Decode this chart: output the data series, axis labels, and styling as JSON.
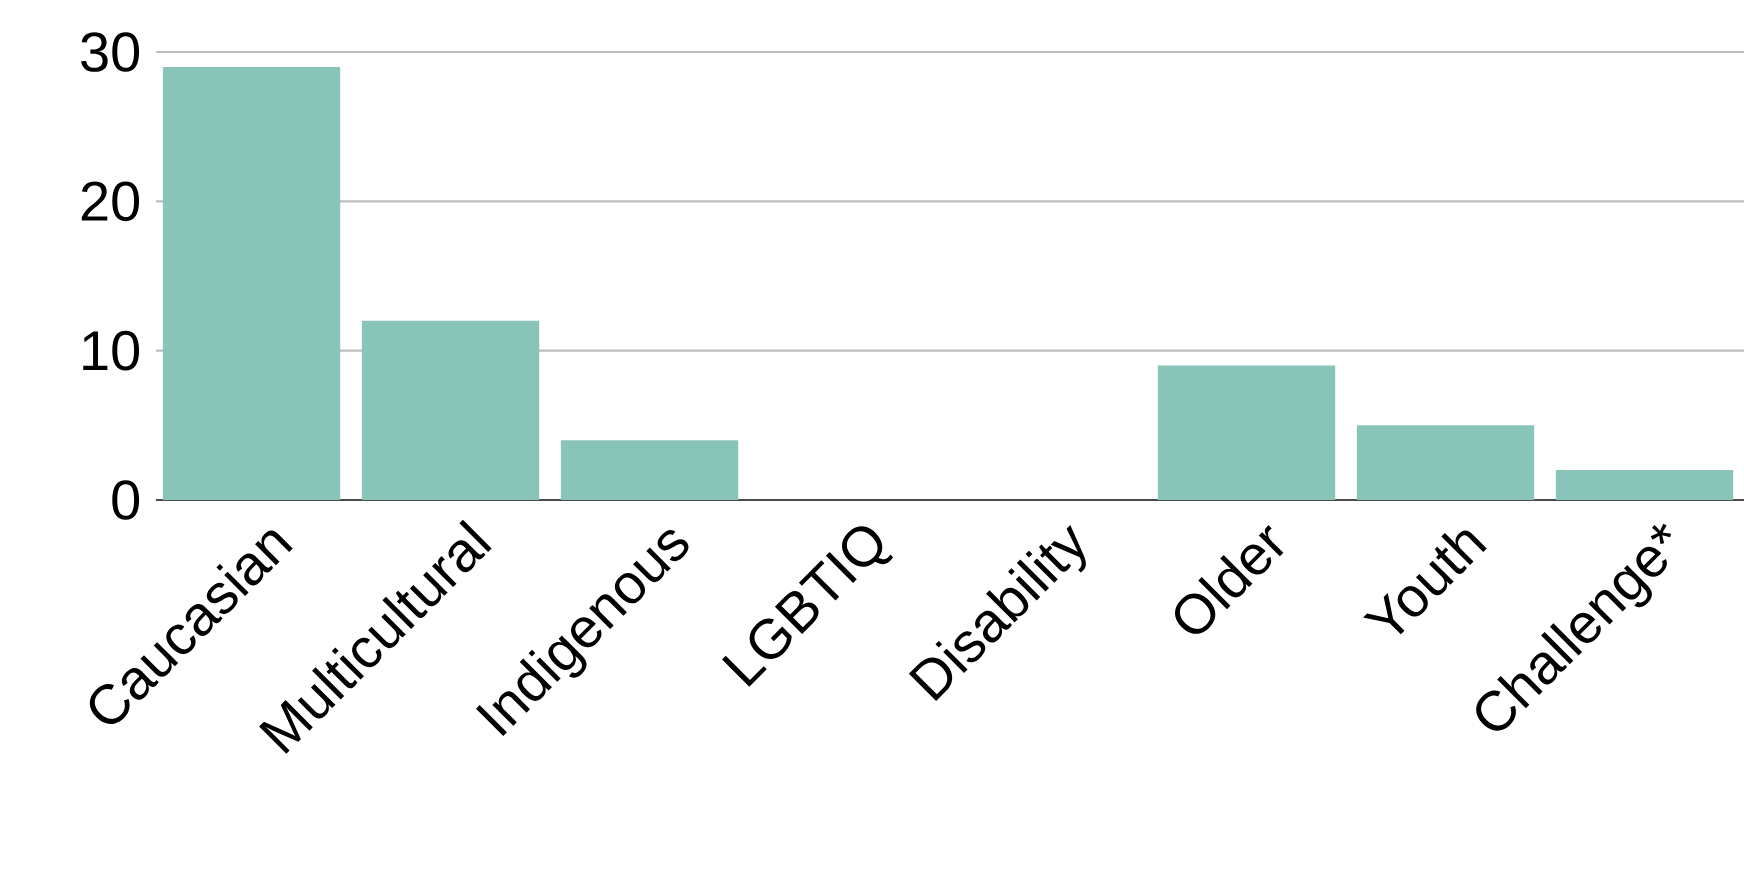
{
  "chart_data": {
    "type": "bar",
    "categories": [
      "Caucasian",
      "Multicultural",
      "Indigenous",
      "LGBTIQ",
      "Disability",
      "Older",
      "Youth",
      "Challenge*"
    ],
    "values": [
      29,
      12,
      4,
      0,
      0,
      9,
      5,
      2
    ],
    "color": "#88c4b8",
    "ylim": [
      0,
      30
    ],
    "yticks": [
      0,
      10,
      20,
      30
    ],
    "grid": "y"
  }
}
